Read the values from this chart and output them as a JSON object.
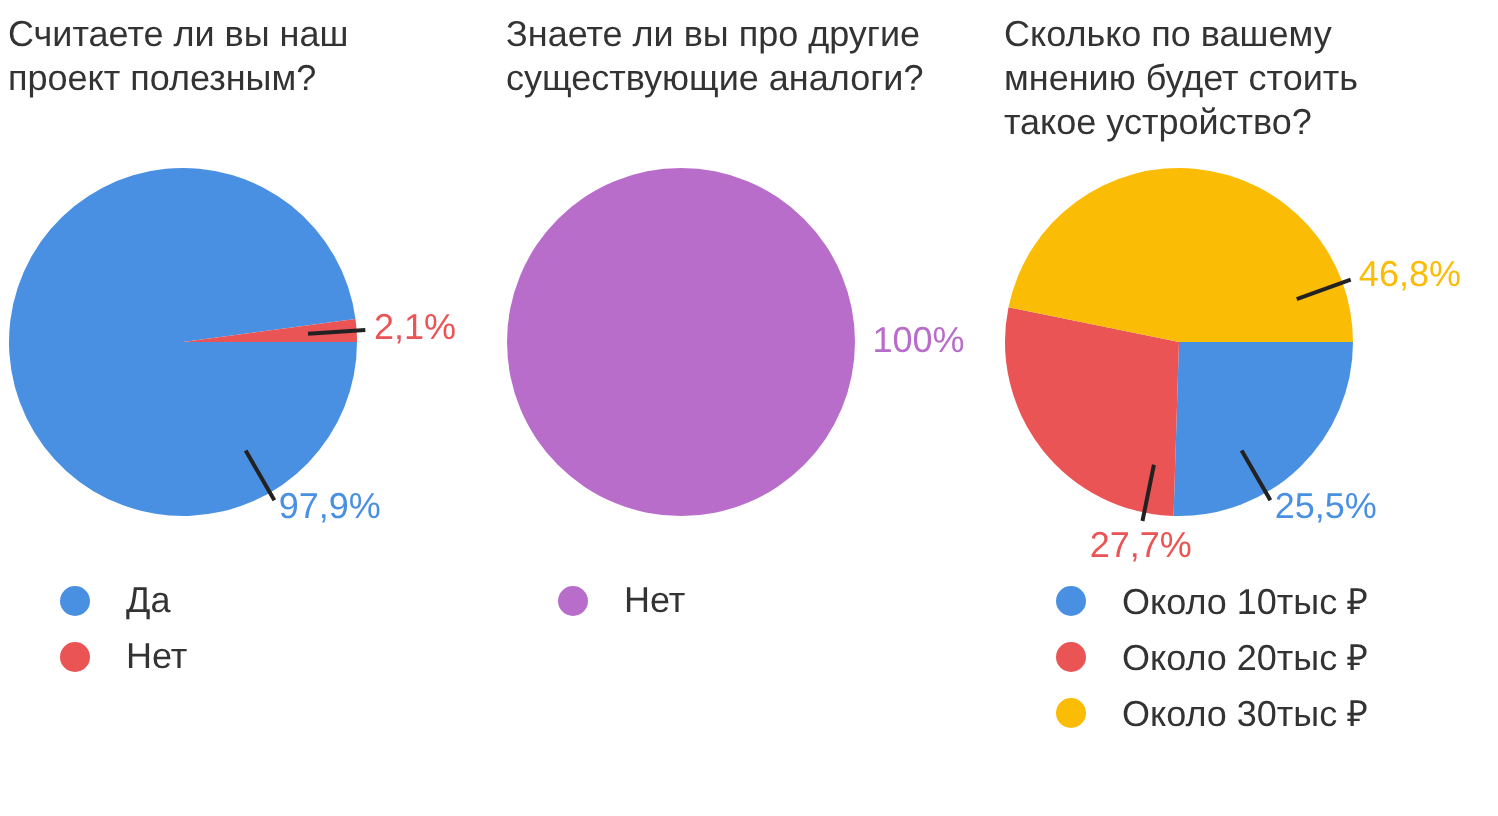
{
  "chart_data": [
    {
      "type": "pie",
      "title": "Считаете ли вы наш проект полезным?",
      "categories": [
        "Да",
        "Нет"
      ],
      "values": [
        97.9,
        2.1
      ],
      "colors": [
        "#4a90e2",
        "#ea5455"
      ],
      "value_labels": [
        "97,9%",
        "2,1%"
      ],
      "legend": "bottom"
    },
    {
      "type": "pie",
      "title": "Знаете ли вы про другие существующие аналоги?",
      "categories": [
        "Нет"
      ],
      "values": [
        100
      ],
      "colors": [
        "#b86dcb"
      ],
      "value_labels": [
        "100%"
      ],
      "legend": "bottom"
    },
    {
      "type": "pie",
      "title": "Сколько по вашему мнению будет стоить такое устройство?",
      "categories": [
        "Около 10тыс ₽",
        "Около 20тыс ₽",
        "Около 30тыс ₽"
      ],
      "values": [
        25.5,
        27.7,
        46.8
      ],
      "colors": [
        "#4a90e2",
        "#ea5455",
        "#fbbc05"
      ],
      "value_labels": [
        "25,5%",
        "27,7%",
        "46,8%"
      ],
      "legend": "bottom"
    }
  ]
}
